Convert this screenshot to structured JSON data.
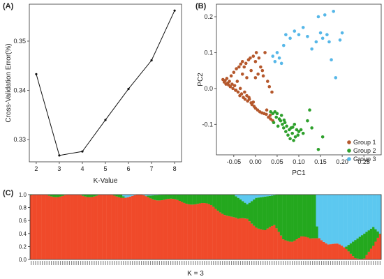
{
  "panels": {
    "a_label": "(A)",
    "b_label": "(B)",
    "c_label": "(C)"
  },
  "colors": {
    "group1": "#b5582c",
    "group2": "#2ea02c",
    "group3": "#56b7e8",
    "structure_red": "#f04a2a",
    "structure_green": "#24a81e",
    "structure_blue": "#5cc8f0"
  },
  "chart_data": [
    {
      "id": "A",
      "type": "line",
      "title": "",
      "xlabel": "K-Value",
      "ylabel": "Cross-Validation Error(%)",
      "x": [
        2,
        3,
        4,
        5,
        6,
        7,
        8
      ],
      "y": [
        0.3433,
        0.3268,
        0.3276,
        0.334,
        0.3403,
        0.3461,
        0.3562
      ],
      "xlim": [
        1.7,
        8.3
      ],
      "ylim": [
        0.3255,
        0.3575
      ],
      "xticks": [
        "2",
        "3",
        "4",
        "5",
        "6",
        "7",
        "8"
      ],
      "yticks": [
        "0.33",
        "0.34",
        "0.35"
      ],
      "ytick_values": [
        0.33,
        0.34,
        0.35
      ],
      "grid": false
    },
    {
      "id": "B",
      "type": "scatter",
      "title": "",
      "xlabel": "PC1",
      "ylabel": "PC2",
      "xlim": [
        -0.09,
        0.29
      ],
      "ylim": [
        -0.185,
        0.235
      ],
      "xticks": [
        "-0.05",
        "0.00",
        "0.05",
        "0.10",
        "0.15",
        "0.20",
        "0.25"
      ],
      "xtick_values": [
        -0.05,
        0.0,
        0.05,
        0.1,
        0.15,
        0.2,
        0.25
      ],
      "yticks": [
        "-0.1",
        "0.0",
        "0.1",
        "0.2"
      ],
      "ytick_values": [
        -0.1,
        0.0,
        0.1,
        0.2
      ],
      "legend_position": "bottom-right",
      "series": [
        {
          "name": "Group 1",
          "points": [
            [
              -0.075,
              0.025
            ],
            [
              -0.072,
              0.018
            ],
            [
              -0.07,
              0.022
            ],
            [
              -0.068,
              0.012
            ],
            [
              -0.066,
              0.028
            ],
            [
              -0.064,
              0.015
            ],
            [
              -0.062,
              0.01
            ],
            [
              -0.06,
              0.02
            ],
            [
              -0.058,
              0.005
            ],
            [
              -0.056,
              0.035
            ],
            [
              -0.054,
              0.012
            ],
            [
              -0.052,
              0.0
            ],
            [
              -0.05,
              0.045
            ],
            [
              -0.048,
              0.008
            ],
            [
              -0.046,
              -0.005
            ],
            [
              -0.044,
              0.055
            ],
            [
              -0.042,
              0.02
            ],
            [
              -0.04,
              -0.01
            ],
            [
              -0.038,
              0.06
            ],
            [
              -0.036,
              -0.02
            ],
            [
              -0.034,
              0.068
            ],
            [
              -0.032,
              -0.015
            ],
            [
              -0.03,
              0.075
            ],
            [
              -0.028,
              -0.025
            ],
            [
              -0.026,
              0.06
            ],
            [
              -0.024,
              -0.03
            ],
            [
              -0.022,
              0.07
            ],
            [
              -0.02,
              -0.02
            ],
            [
              -0.018,
              -0.035
            ],
            [
              -0.016,
              0.08
            ],
            [
              -0.014,
              -0.03
            ],
            [
              -0.012,
              0.085
            ],
            [
              -0.01,
              -0.04
            ],
            [
              -0.008,
              -0.045
            ],
            [
              -0.005,
              0.09
            ],
            [
              -0.003,
              -0.05
            ],
            [
              0.0,
              0.075
            ],
            [
              0.0,
              -0.055
            ],
            [
              0.002,
              0.1
            ],
            [
              0.005,
              -0.06
            ],
            [
              0.008,
              0.085
            ],
            [
              0.01,
              -0.065
            ],
            [
              0.012,
              0.06
            ],
            [
              0.015,
              -0.068
            ],
            [
              0.018,
              0.035
            ],
            [
              0.02,
              -0.07
            ],
            [
              0.022,
              0.1
            ],
            [
              0.025,
              -0.072
            ],
            [
              0.028,
              0.02
            ],
            [
              0.03,
              -0.08
            ],
            [
              0.032,
              0.005
            ],
            [
              0.035,
              -0.085
            ],
            [
              0.038,
              -0.01
            ],
            [
              0.04,
              -0.09
            ],
            [
              -0.03,
              0.04
            ],
            [
              -0.02,
              0.03
            ],
            [
              -0.01,
              0.05
            ],
            [
              0.0,
              0.03
            ],
            [
              -0.045,
              -0.005
            ],
            [
              -0.035,
              0.0
            ],
            [
              -0.025,
              -0.01
            ],
            [
              -0.015,
              -0.025
            ],
            [
              -0.005,
              -0.038
            ],
            [
              0.006,
              0.04
            ],
            [
              0.016,
              0.05
            ],
            [
              0.026,
              -0.06
            ],
            [
              0.034,
              -0.075
            ]
          ]
        },
        {
          "name": "Group 2",
          "points": [
            [
              0.035,
              -0.065
            ],
            [
              0.04,
              -0.07
            ],
            [
              0.045,
              -0.065
            ],
            [
              0.048,
              -0.08
            ],
            [
              0.05,
              -0.07
            ],
            [
              0.055,
              -0.085
            ],
            [
              0.058,
              -0.09
            ],
            [
              0.06,
              -0.075
            ],
            [
              0.062,
              -0.1
            ],
            [
              0.065,
              -0.11
            ],
            [
              0.068,
              -0.095
            ],
            [
              0.07,
              -0.12
            ],
            [
              0.072,
              -0.105
            ],
            [
              0.075,
              -0.13
            ],
            [
              0.078,
              -0.115
            ],
            [
              0.08,
              -0.14
            ],
            [
              0.082,
              -0.11
            ],
            [
              0.085,
              -0.125
            ],
            [
              0.088,
              -0.145
            ],
            [
              0.09,
              -0.1
            ],
            [
              0.092,
              -0.135
            ],
            [
              0.095,
              -0.115
            ],
            [
              0.098,
              -0.13
            ],
            [
              0.1,
              -0.12
            ],
            [
              0.105,
              -0.115
            ],
            [
              0.11,
              -0.125
            ],
            [
              0.12,
              -0.09
            ],
            [
              0.125,
              -0.06
            ],
            [
              0.13,
              -0.11
            ],
            [
              0.145,
              -0.17
            ],
            [
              0.155,
              -0.135
            ],
            [
              0.042,
              -0.095
            ],
            [
              0.052,
              -0.105
            ],
            [
              0.066,
              -0.088
            ],
            [
              0.086,
              -0.108
            ]
          ]
        },
        {
          "name": "Group 3",
          "points": [
            [
              0.04,
              0.09
            ],
            [
              0.045,
              0.075
            ],
            [
              0.05,
              0.1
            ],
            [
              0.055,
              0.085
            ],
            [
              0.06,
              0.07
            ],
            [
              0.065,
              0.12
            ],
            [
              0.07,
              0.15
            ],
            [
              0.08,
              0.14
            ],
            [
              0.09,
              0.16
            ],
            [
              0.1,
              0.15
            ],
            [
              0.11,
              0.17
            ],
            [
              0.12,
              0.145
            ],
            [
              0.13,
              0.11
            ],
            [
              0.14,
              0.13
            ],
            [
              0.145,
              0.2
            ],
            [
              0.15,
              0.155
            ],
            [
              0.155,
              0.14
            ],
            [
              0.16,
              0.205
            ],
            [
              0.165,
              0.15
            ],
            [
              0.17,
              0.13
            ],
            [
              0.175,
              0.08
            ],
            [
              0.18,
              0.215
            ],
            [
              0.185,
              0.03
            ],
            [
              0.195,
              0.135
            ],
            [
              0.2,
              0.155
            ]
          ]
        }
      ]
    },
    {
      "id": "C",
      "type": "bar",
      "title": "",
      "xlabel": "K = 3",
      "ylabel": "",
      "ylim": [
        0,
        1
      ],
      "yticks": [
        "0.0",
        "0.2",
        "0.4",
        "0.6",
        "0.8",
        "1.0"
      ],
      "ytick_values": [
        0,
        0.2,
        0.4,
        0.6,
        0.8,
        1.0
      ],
      "n_samples": 156,
      "stacked": true,
      "series_order": [
        "red",
        "green",
        "blue"
      ],
      "red_profile": [
        [
          0,
          0.99
        ],
        [
          30,
          0.99
        ],
        [
          50,
          0.97
        ],
        [
          58,
          0.93
        ],
        [
          64,
          0.9
        ],
        [
          70,
          0.88
        ],
        [
          76,
          0.85
        ],
        [
          80,
          0.82
        ],
        [
          84,
          0.75
        ],
        [
          88,
          0.68
        ],
        [
          92,
          0.6
        ],
        [
          96,
          0.62
        ],
        [
          100,
          0.52
        ],
        [
          104,
          0.45
        ],
        [
          108,
          0.5
        ],
        [
          112,
          0.32
        ],
        [
          116,
          0.3
        ],
        [
          120,
          0.34
        ],
        [
          124,
          0.3
        ],
        [
          128,
          0.35
        ],
        [
          132,
          0.25
        ],
        [
          136,
          0.22
        ],
        [
          140,
          0.15
        ],
        [
          144,
          0.05
        ],
        [
          148,
          0.02
        ],
        [
          152,
          0.18
        ],
        [
          155,
          0.38
        ]
      ],
      "blue_profile": [
        [
          0,
          0.0
        ],
        [
          40,
          0.0
        ],
        [
          42,
          0.05
        ],
        [
          46,
          0.08
        ],
        [
          50,
          0.02
        ],
        [
          60,
          0.0
        ],
        [
          90,
          0.0
        ],
        [
          96,
          0.15
        ],
        [
          100,
          0.05
        ],
        [
          110,
          0.0
        ],
        [
          126,
          0.0
        ],
        [
          128,
          0.98
        ],
        [
          134,
          1.0
        ],
        [
          140,
          0.8
        ],
        [
          144,
          0.7
        ],
        [
          148,
          0.6
        ],
        [
          152,
          0.5
        ],
        [
          155,
          0.6
        ]
      ]
    }
  ]
}
